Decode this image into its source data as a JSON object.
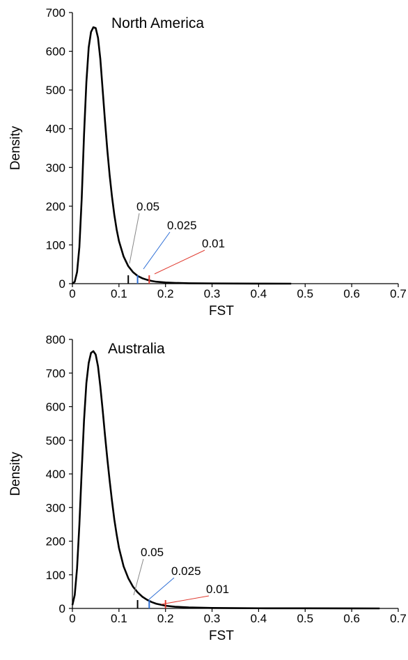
{
  "chart_data": [
    {
      "type": "line",
      "title": "North America",
      "xlabel": "FST",
      "ylabel": "Density",
      "xlim": [
        0,
        0.7
      ],
      "ylim": [
        0,
        700
      ],
      "xticks": [
        "0",
        "0.1",
        "0.2",
        "0.3",
        "0.4",
        "0.5",
        "0.6",
        "0.7"
      ],
      "yticks": [
        "0",
        "100",
        "200",
        "300",
        "400",
        "500",
        "600",
        "700"
      ],
      "grid": false,
      "series": [
        {
          "x": [
            0,
            0.005,
            0.01,
            0.015,
            0.02,
            0.025,
            0.03,
            0.035,
            0.04,
            0.045,
            0.05,
            0.055,
            0.06,
            0.065,
            0.07,
            0.075,
            0.08,
            0.085,
            0.09,
            0.095,
            0.1,
            0.11,
            0.12,
            0.13,
            0.14,
            0.15,
            0.16,
            0.17,
            0.18,
            0.2,
            0.22,
            0.25,
            0.3,
            0.35,
            0.4,
            0.47
          ],
          "y": [
            0,
            5,
            30,
            95,
            220,
            385,
            520,
            610,
            650,
            662,
            660,
            635,
            580,
            500,
            420,
            345,
            280,
            225,
            178,
            140,
            110,
            70,
            45,
            30,
            20,
            14,
            10,
            7,
            5,
            3,
            2,
            1,
            0.5,
            0.3,
            0.2,
            0
          ]
        }
      ],
      "thresholds": [
        {
          "label": "0.05",
          "x": 0.12,
          "color": "#000000"
        },
        {
          "label": "0.025",
          "x": 0.14,
          "color": "#2e6fd6"
        },
        {
          "label": "0.01",
          "x": 0.165,
          "color": "#e03c31"
        }
      ]
    },
    {
      "type": "line",
      "title": "Australia",
      "xlabel": "FST",
      "ylabel": "Density",
      "xlim": [
        0,
        0.7
      ],
      "ylim": [
        0,
        800
      ],
      "xticks": [
        "0",
        "0.1",
        "0.2",
        "0.3",
        "0.4",
        "0.5",
        "0.6",
        "0.7"
      ],
      "yticks": [
        "0",
        "100",
        "200",
        "300",
        "400",
        "500",
        "600",
        "700",
        "800"
      ],
      "grid": false,
      "series": [
        {
          "x": [
            0,
            0.005,
            0.01,
            0.015,
            0.02,
            0.025,
            0.03,
            0.035,
            0.04,
            0.045,
            0.05,
            0.055,
            0.06,
            0.065,
            0.07,
            0.075,
            0.08,
            0.085,
            0.09,
            0.095,
            0.1,
            0.11,
            0.12,
            0.13,
            0.14,
            0.15,
            0.16,
            0.17,
            0.18,
            0.2,
            0.22,
            0.25,
            0.3,
            0.35,
            0.4,
            0.5,
            0.6,
            0.66
          ],
          "y": [
            10,
            40,
            120,
            250,
            410,
            560,
            670,
            730,
            760,
            765,
            755,
            720,
            660,
            590,
            515,
            445,
            380,
            320,
            265,
            220,
            180,
            125,
            90,
            65,
            48,
            35,
            26,
            19,
            14,
            8,
            5,
            3,
            1.5,
            1,
            0.5,
            0.3,
            0.2,
            0
          ]
        }
      ],
      "thresholds": [
        {
          "label": "0.05",
          "x": 0.14,
          "color": "#000000"
        },
        {
          "label": "0.025",
          "x": 0.165,
          "color": "#2e6fd6"
        },
        {
          "label": "0.01",
          "x": 0.2,
          "color": "#e03c31"
        }
      ]
    }
  ]
}
